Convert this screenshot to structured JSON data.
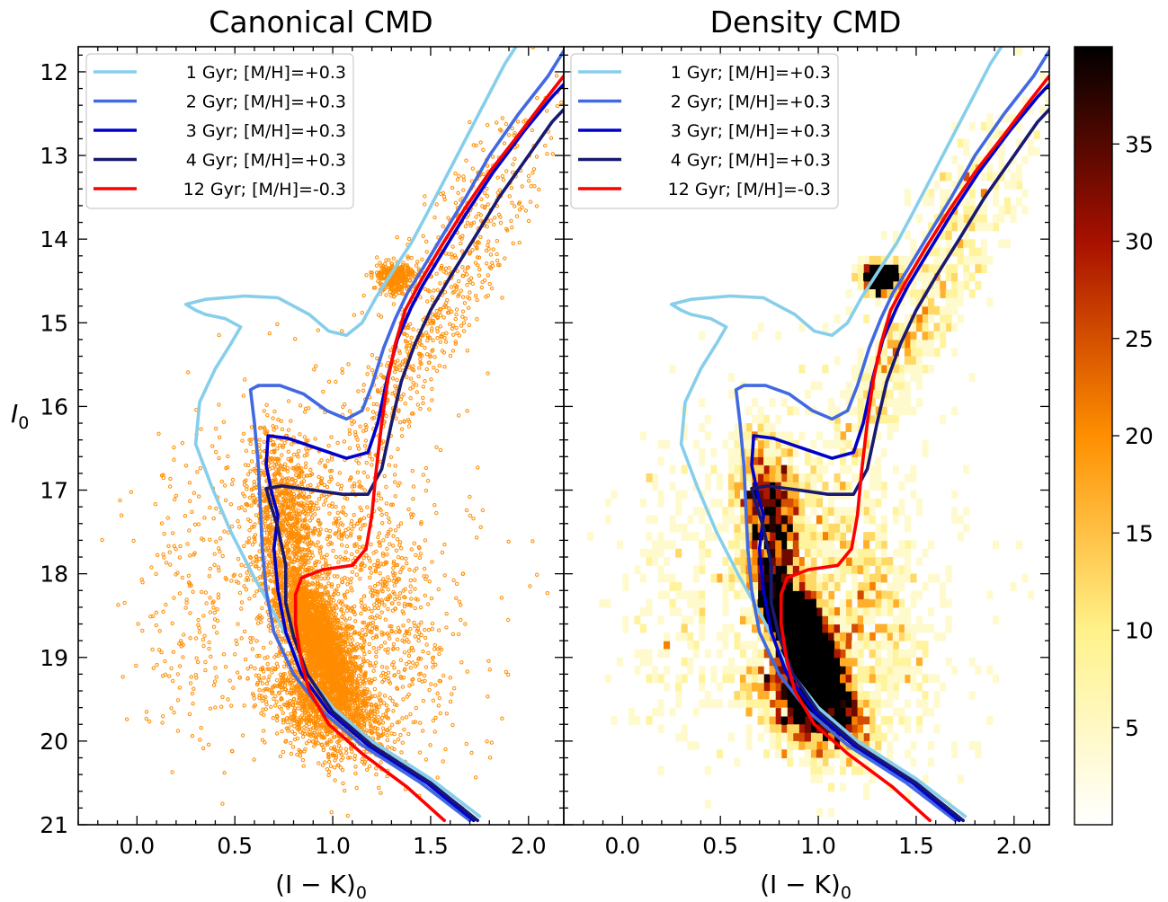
{
  "chart_data": [
    {
      "type": "scatter",
      "panel": "left",
      "title": "Canonical CMD",
      "xlabel": "(I − K)",
      "xlabel_sub": "0",
      "ylabel": "I",
      "ylabel_sub": "0",
      "xlim": [
        -0.3,
        2.18
      ],
      "ylim": [
        21.0,
        11.7
      ],
      "y_inverted": true,
      "xticks": [
        "0.0",
        "0.5",
        "1.0",
        "1.5",
        "2.0"
      ],
      "yticks": [
        "12",
        "13",
        "14",
        "15",
        "16",
        "17",
        "18",
        "19",
        "20",
        "21"
      ],
      "point_color": "#ff8c00",
      "point_density": {
        "note": "thousands of stars",
        "main_sequence_turnoff": {
          "x_range": [
            0.6,
            1.15
          ],
          "y_range": [
            16.0,
            20.5
          ]
        },
        "red_clump": {
          "x": 1.27,
          "y": 14.45
        },
        "densest": {
          "x": 0.9,
          "y": 18.6
        }
      },
      "legend_placement": "upper-left",
      "series": "isochrones"
    },
    {
      "type": "heatmap",
      "panel": "right",
      "title": "Density CMD",
      "xlabel": "(I − K)",
      "xlabel_sub": "0",
      "xlim": [
        -0.3,
        2.18
      ],
      "ylim": [
        21.0,
        11.7
      ],
      "y_inverted": true,
      "xticks": [
        "0.0",
        "0.5",
        "1.0",
        "1.5",
        "2.0"
      ],
      "colormap": "afmhot_r",
      "colorbar_range": [
        0,
        40
      ],
      "colorbar_ticks": [
        "5",
        "10",
        "15",
        "20",
        "25",
        "30",
        "35"
      ],
      "colorbar_tick_values": [
        5,
        10,
        15,
        20,
        25,
        30,
        35
      ],
      "legend_placement": "upper-left",
      "series": "isochrones"
    }
  ],
  "isochrones": [
    {
      "name": "1 Gyr; [M/H]=+0.3",
      "color": "#87ceeb",
      "points": [
        [
          1.75,
          20.9
        ],
        [
          1.5,
          20.45
        ],
        [
          1.2,
          20.0
        ],
        [
          1.0,
          19.6
        ],
        [
          0.85,
          19.15
        ],
        [
          0.72,
          18.55
        ],
        [
          0.6,
          18.05
        ],
        [
          0.48,
          17.5
        ],
        [
          0.38,
          16.95
        ],
        [
          0.3,
          16.45
        ],
        [
          0.32,
          15.95
        ],
        [
          0.4,
          15.55
        ],
        [
          0.48,
          15.25
        ],
        [
          0.53,
          15.05
        ],
        [
          0.45,
          14.95
        ],
        [
          0.35,
          14.9
        ],
        [
          0.3,
          14.85
        ],
        [
          0.25,
          14.78
        ],
        [
          0.35,
          14.72
        ],
        [
          0.55,
          14.68
        ],
        [
          0.72,
          14.7
        ],
        [
          0.88,
          14.9
        ],
        [
          0.98,
          15.1
        ],
        [
          1.07,
          15.15
        ],
        [
          1.15,
          15.0
        ],
        [
          1.22,
          14.7
        ],
        [
          1.33,
          14.3
        ],
        [
          1.4,
          14.05
        ],
        [
          1.48,
          13.7
        ],
        [
          1.58,
          13.25
        ],
        [
          1.68,
          12.8
        ],
        [
          1.78,
          12.35
        ],
        [
          1.88,
          11.9
        ],
        [
          1.95,
          11.65
        ]
      ]
    },
    {
      "name": "2 Gyr; [M/H]=+0.3",
      "color": "#4169e1",
      "points": [
        [
          1.7,
          20.95
        ],
        [
          1.45,
          20.5
        ],
        [
          1.15,
          20.05
        ],
        [
          0.95,
          19.65
        ],
        [
          0.8,
          19.2
        ],
        [
          0.7,
          18.7
        ],
        [
          0.66,
          18.2
        ],
        [
          0.64,
          17.7
        ],
        [
          0.63,
          17.2
        ],
        [
          0.62,
          16.7
        ],
        [
          0.6,
          16.2
        ],
        [
          0.58,
          15.8
        ],
        [
          0.62,
          15.75
        ],
        [
          0.73,
          15.75
        ],
        [
          0.85,
          15.85
        ],
        [
          0.97,
          16.05
        ],
        [
          1.07,
          16.15
        ],
        [
          1.15,
          16.05
        ],
        [
          1.2,
          15.75
        ],
        [
          1.26,
          15.3
        ],
        [
          1.32,
          14.95
        ],
        [
          1.38,
          14.65
        ],
        [
          1.46,
          14.35
        ],
        [
          1.55,
          14.0
        ],
        [
          1.68,
          13.5
        ],
        [
          1.8,
          13.0
        ],
        [
          1.95,
          12.5
        ],
        [
          2.1,
          12.05
        ],
        [
          2.18,
          11.75
        ]
      ]
    },
    {
      "name": "3 Gyr; [M/H]=+0.3",
      "color": "#0000cd",
      "points": [
        [
          1.72,
          20.95
        ],
        [
          1.48,
          20.5
        ],
        [
          1.18,
          20.05
        ],
        [
          0.98,
          19.65
        ],
        [
          0.84,
          19.2
        ],
        [
          0.76,
          18.7
        ],
        [
          0.72,
          18.2
        ],
        [
          0.7,
          17.7
        ],
        [
          0.72,
          17.3
        ],
        [
          0.69,
          17.05
        ],
        [
          0.66,
          16.7
        ],
        [
          0.67,
          16.35
        ],
        [
          0.77,
          16.38
        ],
        [
          0.92,
          16.5
        ],
        [
          1.07,
          16.62
        ],
        [
          1.18,
          16.55
        ],
        [
          1.23,
          16.2
        ],
        [
          1.28,
          15.65
        ],
        [
          1.33,
          15.2
        ],
        [
          1.4,
          14.82
        ],
        [
          1.46,
          14.55
        ],
        [
          1.55,
          14.2
        ],
        [
          1.68,
          13.7
        ],
        [
          1.82,
          13.2
        ],
        [
          1.98,
          12.7
        ],
        [
          2.12,
          12.3
        ],
        [
          2.18,
          12.15
        ]
      ]
    },
    {
      "name": "4 Gyr; [M/H]=+0.3",
      "color": "#191970",
      "points": [
        [
          1.74,
          20.95
        ],
        [
          1.5,
          20.5
        ],
        [
          1.2,
          20.05
        ],
        [
          1.0,
          19.65
        ],
        [
          0.87,
          19.2
        ],
        [
          0.8,
          18.75
        ],
        [
          0.76,
          18.35
        ],
        [
          0.76,
          17.9
        ],
        [
          0.72,
          17.45
        ],
        [
          0.68,
          17.15
        ],
        [
          0.66,
          16.98
        ],
        [
          0.74,
          16.95
        ],
        [
          0.9,
          17.0
        ],
        [
          1.05,
          17.05
        ],
        [
          1.18,
          17.05
        ],
        [
          1.25,
          16.75
        ],
        [
          1.3,
          16.2
        ],
        [
          1.35,
          15.7
        ],
        [
          1.42,
          15.25
        ],
        [
          1.5,
          14.85
        ],
        [
          1.6,
          14.45
        ],
        [
          1.72,
          14.0
        ],
        [
          1.85,
          13.5
        ],
        [
          2.0,
          13.0
        ],
        [
          2.12,
          12.6
        ],
        [
          2.18,
          12.45
        ]
      ]
    },
    {
      "name": "12 Gyr; [M/H]=-0.3",
      "color": "#ff0000",
      "points": [
        [
          1.57,
          20.95
        ],
        [
          1.38,
          20.55
        ],
        [
          1.15,
          20.15
        ],
        [
          0.98,
          19.8
        ],
        [
          0.88,
          19.4
        ],
        [
          0.84,
          19.05
        ],
        [
          0.81,
          18.6
        ],
        [
          0.81,
          18.25
        ],
        [
          0.84,
          18.05
        ],
        [
          0.95,
          17.95
        ],
        [
          1.1,
          17.9
        ],
        [
          1.17,
          17.7
        ],
        [
          1.2,
          17.3
        ],
        [
          1.22,
          16.8
        ],
        [
          1.25,
          16.2
        ],
        [
          1.28,
          15.7
        ],
        [
          1.32,
          15.25
        ],
        [
          1.37,
          14.85
        ],
        [
          1.45,
          14.5
        ],
        [
          1.55,
          14.1
        ],
        [
          1.67,
          13.65
        ],
        [
          1.8,
          13.2
        ],
        [
          1.95,
          12.75
        ],
        [
          2.08,
          12.35
        ],
        [
          2.18,
          12.05
        ]
      ]
    }
  ]
}
